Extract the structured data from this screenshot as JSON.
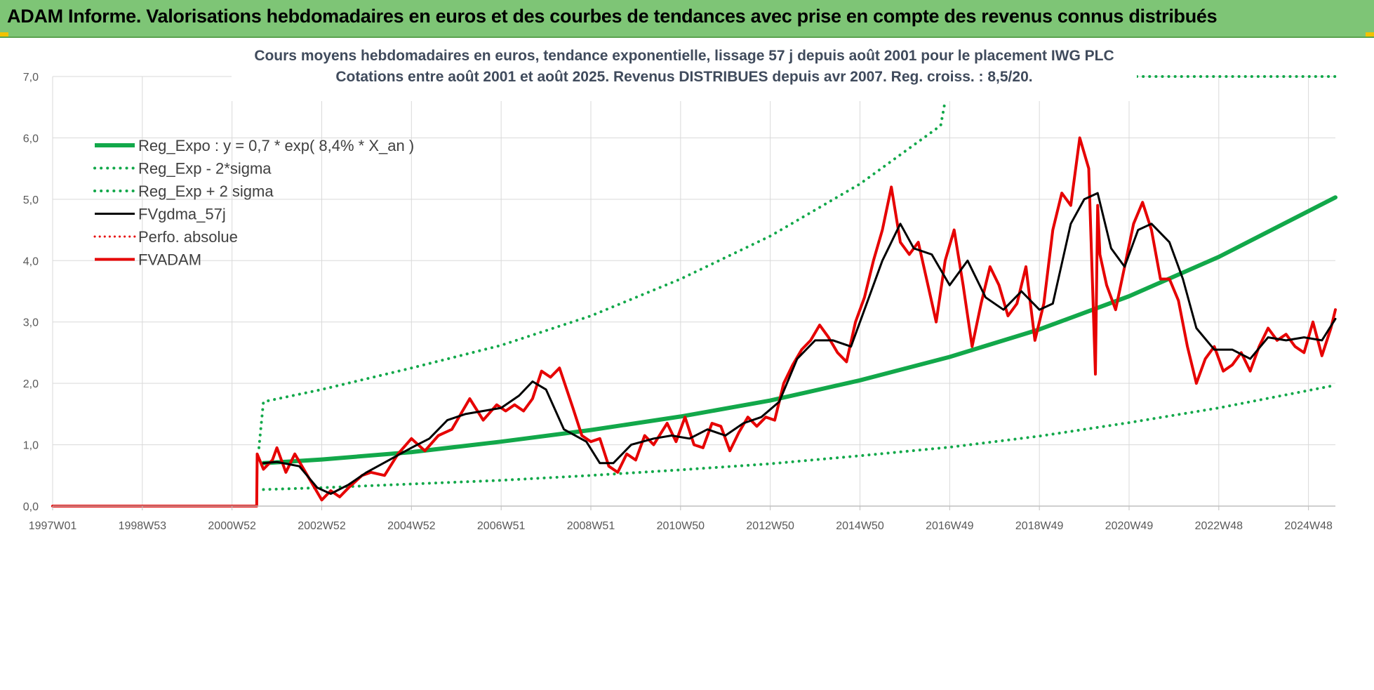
{
  "header": {
    "title": "ADAM Informe. Valorisations hebdomadaires en euros et des courbes de tendances avec prise en compte des revenus connus distribués"
  },
  "colors": {
    "banner": "#7ec576",
    "green": "#12a84a",
    "red": "#e60000",
    "black": "#000000",
    "grid": "#d9d9d9"
  },
  "chart_data": {
    "type": "line",
    "title_line1": "Cours moyens hebdomadaires en euros, tendance exponentielle, lissage 57 j depuis août 2001 pour le placement IWG PLC",
    "title_line2": "Cotations entre août 2001 et août 2025. Revenus DISTRIBUES depuis avr 2007. Reg. croiss. : 8,5/20.",
    "xlabel": "",
    "ylabel": "",
    "ylim": [
      0,
      7
    ],
    "yticks": [
      "0,0",
      "1,0",
      "2,0",
      "3,0",
      "4,0",
      "5,0",
      "6,0",
      "7,0"
    ],
    "xlim": [
      1997.0,
      2025.6
    ],
    "xticks": [
      {
        "label": "1997W01",
        "x": 1997.0
      },
      {
        "label": "1998W53",
        "x": 1999.0
      },
      {
        "label": "2000W52",
        "x": 2001.0
      },
      {
        "label": "2002W52",
        "x": 2003.0
      },
      {
        "label": "2004W52",
        "x": 2005.0
      },
      {
        "label": "2006W51",
        "x": 2007.0
      },
      {
        "label": "2008W51",
        "x": 2009.0
      },
      {
        "label": "2010W50",
        "x": 2011.0
      },
      {
        "label": "2012W50",
        "x": 2013.0
      },
      {
        "label": "2014W50",
        "x": 2015.0
      },
      {
        "label": "2016W49",
        "x": 2017.0
      },
      {
        "label": "2018W49",
        "x": 2019.0
      },
      {
        "label": "2020W49",
        "x": 2021.0
      },
      {
        "label": "2022W48",
        "x": 2023.0
      },
      {
        "label": "2024W48",
        "x": 2025.0
      }
    ],
    "grid": true,
    "legend_position": "top-left",
    "series": [
      {
        "name": "Reg_Expo : y = 0,7 * exp( 8,4% *  X_an )",
        "style": "solid-green",
        "x": [
          2001.7,
          2003,
          2005,
          2007,
          2009,
          2011,
          2013,
          2015,
          2017,
          2019,
          2021,
          2023,
          2025.6
        ],
        "y": [
          0.7,
          0.76,
          0.88,
          1.05,
          1.24,
          1.46,
          1.72,
          2.05,
          2.43,
          2.88,
          3.42,
          4.06,
          5.03
        ]
      },
      {
        "name": "Reg_Exp - 2*sigma",
        "style": "dotted-green",
        "x": [
          2001.7,
          2003,
          2005,
          2007,
          2009,
          2011,
          2013,
          2015,
          2017,
          2019,
          2021,
          2023,
          2025.6
        ],
        "y": [
          0.27,
          0.3,
          0.36,
          0.42,
          0.5,
          0.59,
          0.69,
          0.82,
          0.96,
          1.14,
          1.36,
          1.6,
          1.97
        ]
      },
      {
        "name": "Reg_Exp + 2 sigma",
        "style": "dotted-green",
        "x": [
          2001.6,
          2001.7,
          2003,
          2005,
          2007,
          2009,
          2011,
          2013,
          2015,
          2016.8,
          2017.0,
          2025.6
        ],
        "y": [
          0.95,
          1.7,
          1.9,
          2.25,
          2.62,
          3.1,
          3.7,
          4.4,
          5.25,
          6.2,
          7.0,
          7.0
        ]
      },
      {
        "name": "FVgdma_57j",
        "style": "solid-black",
        "x": [
          2001.7,
          2002.0,
          2002.5,
          2002.9,
          2003.2,
          2003.6,
          2004.0,
          2004.5,
          2005.0,
          2005.4,
          2005.8,
          2006.2,
          2006.6,
          2007.0,
          2007.4,
          2007.7,
          2008.0,
          2008.4,
          2008.9,
          2009.2,
          2009.5,
          2009.9,
          2010.4,
          2010.8,
          2011.2,
          2011.6,
          2012.0,
          2012.4,
          2012.8,
          2013.2,
          2013.6,
          2014.0,
          2014.4,
          2014.8,
          2015.1,
          2015.5,
          2015.9,
          2016.2,
          2016.6,
          2017.0,
          2017.4,
          2017.8,
          2018.2,
          2018.6,
          2019.0,
          2019.3,
          2019.7,
          2020.0,
          2020.3,
          2020.6,
          2020.9,
          2021.2,
          2021.5,
          2021.9,
          2022.2,
          2022.5,
          2022.9,
          2023.3,
          2023.7,
          2024.1,
          2024.5,
          2024.9,
          2025.3,
          2025.6
        ],
        "y": [
          0.7,
          0.72,
          0.65,
          0.3,
          0.2,
          0.35,
          0.55,
          0.75,
          0.95,
          1.1,
          1.4,
          1.5,
          1.55,
          1.6,
          1.8,
          2.03,
          1.9,
          1.25,
          1.05,
          0.7,
          0.7,
          1.0,
          1.1,
          1.15,
          1.1,
          1.25,
          1.15,
          1.35,
          1.45,
          1.7,
          2.4,
          2.7,
          2.7,
          2.6,
          3.2,
          4.0,
          4.6,
          4.2,
          4.1,
          3.6,
          4.0,
          3.4,
          3.2,
          3.5,
          3.2,
          3.3,
          4.6,
          5.0,
          5.1,
          4.2,
          3.9,
          4.5,
          4.6,
          4.3,
          3.7,
          2.9,
          2.55,
          2.55,
          2.4,
          2.75,
          2.7,
          2.75,
          2.7,
          3.05
        ]
      },
      {
        "name": "Perfo. absolue",
        "style": "dotted-red",
        "x": [],
        "y": []
      },
      {
        "name": "FVADAM",
        "style": "solid-red",
        "x": [
          1997.0,
          2001.55,
          2001.56,
          2001.7,
          2001.9,
          2002.0,
          2002.2,
          2002.4,
          2002.6,
          2002.8,
          2003.0,
          2003.2,
          2003.4,
          2003.6,
          2003.9,
          2004.1,
          2004.4,
          2004.7,
          2005.0,
          2005.3,
          2005.6,
          2005.9,
          2006.1,
          2006.3,
          2006.6,
          2006.9,
          2007.1,
          2007.3,
          2007.5,
          2007.7,
          2007.9,
          2008.1,
          2008.3,
          2008.6,
          2008.8,
          2009.0,
          2009.2,
          2009.4,
          2009.6,
          2009.8,
          2010.0,
          2010.2,
          2010.4,
          2010.7,
          2010.9,
          2011.1,
          2011.3,
          2011.5,
          2011.7,
          2011.9,
          2012.1,
          2012.3,
          2012.5,
          2012.7,
          2012.9,
          2013.1,
          2013.3,
          2013.5,
          2013.7,
          2013.9,
          2014.1,
          2014.3,
          2014.5,
          2014.7,
          2014.9,
          2015.1,
          2015.3,
          2015.5,
          2015.7,
          2015.9,
          2016.1,
          2016.3,
          2016.5,
          2016.7,
          2016.9,
          2017.1,
          2017.3,
          2017.5,
          2017.7,
          2017.9,
          2018.1,
          2018.3,
          2018.5,
          2018.7,
          2018.9,
          2019.1,
          2019.3,
          2019.5,
          2019.7,
          2019.9,
          2020.1,
          2020.25,
          2020.3,
          2020.35,
          2020.5,
          2020.7,
          2020.9,
          2021.1,
          2021.3,
          2021.5,
          2021.7,
          2021.9,
          2022.1,
          2022.3,
          2022.5,
          2022.7,
          2022.9,
          2023.1,
          2023.3,
          2023.5,
          2023.7,
          2023.9,
          2024.1,
          2024.3,
          2024.5,
          2024.7,
          2024.9,
          2025.1,
          2025.3,
          2025.5,
          2025.6
        ],
        "y": [
          0.0,
          0.0,
          0.85,
          0.6,
          0.75,
          0.95,
          0.55,
          0.85,
          0.6,
          0.35,
          0.1,
          0.25,
          0.15,
          0.3,
          0.5,
          0.55,
          0.5,
          0.85,
          1.1,
          0.9,
          1.15,
          1.25,
          1.5,
          1.75,
          1.4,
          1.65,
          1.55,
          1.65,
          1.55,
          1.75,
          2.2,
          2.1,
          2.25,
          1.6,
          1.15,
          1.05,
          1.1,
          0.65,
          0.55,
          0.85,
          0.75,
          1.15,
          1.0,
          1.35,
          1.05,
          1.45,
          1.0,
          0.95,
          1.35,
          1.3,
          0.9,
          1.2,
          1.45,
          1.3,
          1.45,
          1.4,
          2.0,
          2.3,
          2.55,
          2.7,
          2.95,
          2.75,
          2.5,
          2.35,
          3.0,
          3.4,
          4.0,
          4.5,
          5.2,
          4.3,
          4.1,
          4.3,
          3.65,
          3.0,
          4.0,
          4.5,
          3.6,
          2.6,
          3.3,
          3.9,
          3.6,
          3.1,
          3.3,
          3.9,
          2.7,
          3.3,
          4.5,
          5.1,
          4.9,
          6.0,
          5.5,
          2.15,
          4.9,
          4.1,
          3.6,
          3.2,
          3.9,
          4.6,
          4.95,
          4.5,
          3.7,
          3.7,
          3.35,
          2.6,
          2.0,
          2.4,
          2.6,
          2.2,
          2.3,
          2.5,
          2.2,
          2.6,
          2.9,
          2.7,
          2.8,
          2.6,
          2.5,
          3.0,
          2.45,
          2.9,
          3.2
        ]
      }
    ]
  }
}
